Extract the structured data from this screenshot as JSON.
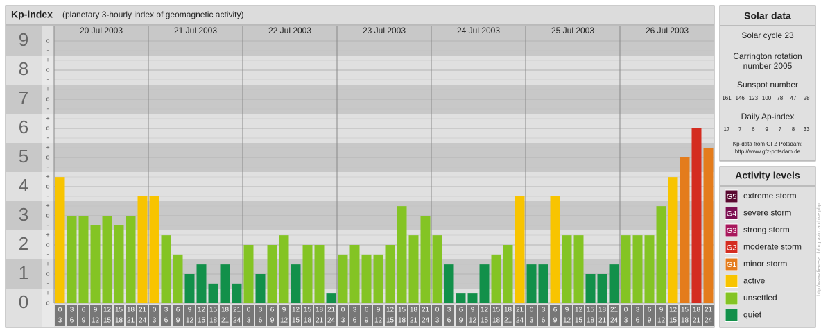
{
  "chart_data": {
    "type": "bar",
    "title": "Kp-index",
    "subtitle": "(planetary 3-hourly index of geomagnetic activity)",
    "days": [
      "20 Jul 2003",
      "21 Jul 2003",
      "22 Jul 2003",
      "23 Jul 2003",
      "24 Jul 2003",
      "25 Jul 2003",
      "26 Jul 2003"
    ],
    "hours": [
      [
        "0",
        "3"
      ],
      [
        "3",
        "6"
      ],
      [
        "6",
        "9"
      ],
      [
        "9",
        "12"
      ],
      [
        "12",
        "15"
      ],
      [
        "15",
        "18"
      ],
      [
        "18",
        "21"
      ],
      [
        "21",
        "24"
      ]
    ],
    "subticks": {
      "minus": "-",
      "zero": "o",
      "plus": "+"
    },
    "ylim": [
      0,
      9.5
    ],
    "yticks": [
      0,
      1,
      2,
      3,
      4,
      5,
      6,
      7,
      8,
      9
    ],
    "values": [
      4.33,
      3,
      3,
      2.67,
      3,
      2.67,
      3,
      3.67,
      3.67,
      2.33,
      1.67,
      1,
      1.33,
      0.67,
      1.33,
      0.67,
      2,
      1,
      2,
      2.33,
      1.33,
      2,
      2,
      0.33,
      1.67,
      2,
      1.67,
      1.67,
      2,
      3.33,
      2.33,
      3,
      2.33,
      1.33,
      0.33,
      0.33,
      1.33,
      1.67,
      2,
      3.67,
      1.33,
      1.33,
      3.67,
      2.33,
      2.33,
      1,
      1,
      1.33,
      2.33,
      2.33,
      2.33,
      3.33,
      4.33,
      5,
      6,
      5.33
    ],
    "colors": [
      "#f8c400",
      "#84c424",
      "#84c424",
      "#84c424",
      "#84c424",
      "#84c424",
      "#84c424",
      "#f8c400",
      "#f8c400",
      "#84c424",
      "#84c424",
      "#12904a",
      "#12904a",
      "#12904a",
      "#12904a",
      "#12904a",
      "#84c424",
      "#12904a",
      "#84c424",
      "#84c424",
      "#12904a",
      "#84c424",
      "#84c424",
      "#12904a",
      "#84c424",
      "#84c424",
      "#84c424",
      "#84c424",
      "#84c424",
      "#84c424",
      "#84c424",
      "#84c424",
      "#84c424",
      "#12904a",
      "#12904a",
      "#12904a",
      "#12904a",
      "#84c424",
      "#84c424",
      "#f8c400",
      "#12904a",
      "#12904a",
      "#f8c400",
      "#84c424",
      "#84c424",
      "#12904a",
      "#12904a",
      "#12904a",
      "#84c424",
      "#84c424",
      "#84c424",
      "#84c424",
      "#f8c400",
      "#e47c1c",
      "#d42c20",
      "#e47c1c"
    ]
  },
  "solar_data": {
    "title": "Solar data",
    "cycle": "Solar cycle 23",
    "carrington": [
      "Carrington rotation",
      "number 2005"
    ],
    "sunspot_label": "Sunspot number",
    "sunspot_numbers": [
      161,
      146,
      123,
      100,
      78,
      47,
      28
    ],
    "ap_label": "Daily Ap-index",
    "ap_values": [
      17,
      7,
      6,
      9,
      7,
      8,
      33
    ],
    "source": [
      "Kp-data from GFZ Potsdam:",
      "http://www.gfz-potsdam.de"
    ]
  },
  "activity_levels": {
    "title": "Activity levels",
    "items": [
      {
        "badge": "G5",
        "label": "extreme storm",
        "color": "#5a0a30"
      },
      {
        "badge": "G4",
        "label": "severe storm",
        "color": "#7c1052"
      },
      {
        "badge": "G3",
        "label": "strong storm",
        "color": "#a8185c"
      },
      {
        "badge": "G2",
        "label": "moderate storm",
        "color": "#d42c20"
      },
      {
        "badge": "G1",
        "label": "minor storm",
        "color": "#e47c1c"
      },
      {
        "label": "active",
        "color": "#f8c400"
      },
      {
        "label": "unsettled",
        "color": "#84c424"
      },
      {
        "label": "quiet",
        "color": "#12904a"
      }
    ]
  },
  "credit": "http://www.fieuese.ch/urgravio_archive.php"
}
